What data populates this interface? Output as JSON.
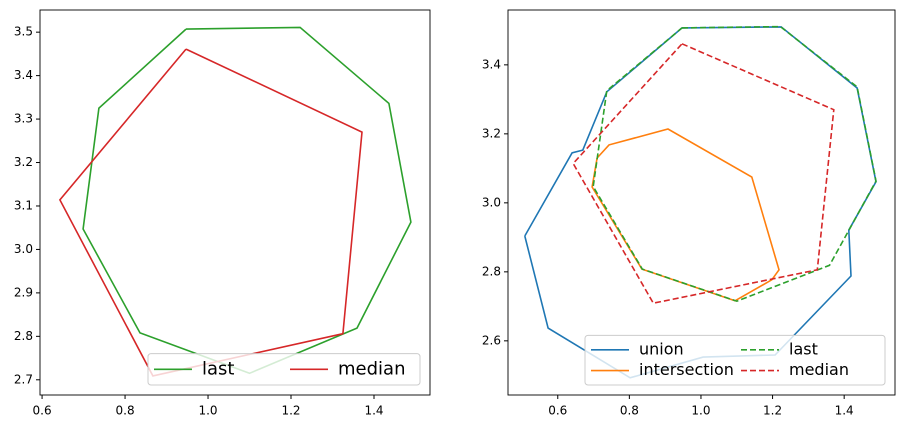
{
  "chart_data": [
    {
      "type": "line",
      "xlim": [
        0.595,
        1.535
      ],
      "ylim": [
        2.665,
        3.551
      ],
      "xticks": [
        0.6,
        0.8,
        {
          "value": 1,
          "label": "1.0"
        },
        1.2,
        1.4
      ],
      "yticks": [
        2.7,
        2.8,
        2.9,
        {
          "value": 3,
          "label": "3.0"
        },
        3.1,
        3.2,
        3.3,
        3.4,
        3.5
      ],
      "legend": "lower right",
      "legend_columns": 2,
      "series": [
        {
          "name": "last",
          "color": "#2ca02c",
          "linestyle": "solid",
          "x": [
            0.947,
            1.222,
            1.436,
            1.489,
            1.359,
            1.1,
            0.836,
            0.699,
            0.737,
            0.947
          ],
          "values": [
            3.507,
            3.511,
            3.336,
            3.063,
            2.819,
            2.715,
            2.808,
            3.047,
            3.325,
            3.507
          ]
        },
        {
          "name": "median",
          "color": "#d62728",
          "linestyle": "solid",
          "x": [
            0.947,
            1.371,
            1.325,
            0.867,
            0.643,
            0.947
          ],
          "values": [
            3.461,
            3.27,
            2.806,
            2.709,
            3.114,
            3.461
          ]
        }
      ]
    },
    {
      "type": "line",
      "xlim": [
        0.461,
        1.542
      ],
      "ylim": [
        2.443,
        3.559
      ],
      "xticks": [
        0.6,
        0.8,
        {
          "value": 1,
          "label": "1.0"
        },
        1.2,
        1.4
      ],
      "yticks": [
        2.6,
        2.8,
        {
          "value": 3,
          "label": "3.0"
        },
        3.2,
        3.4
      ],
      "legend": "lower right",
      "legend_columns": 2,
      "series": [
        {
          "name": "union",
          "color": "#1f77b4",
          "linestyle": "solid",
          "x": [
            0.508,
            0.573,
            0.802,
            1.006,
            1.207,
            1.419,
            1.413,
            1.489,
            1.436,
            1.224,
            0.947,
            0.737,
            0.67,
            0.64,
            0.508
          ],
          "values": [
            2.904,
            2.637,
            2.493,
            2.553,
            2.559,
            2.788,
            2.921,
            3.061,
            3.333,
            3.51,
            3.507,
            3.322,
            3.153,
            3.145,
            2.904
          ]
        },
        {
          "name": "intersection",
          "color": "#ff7f0e",
          "linestyle": "solid",
          "x": [
            0.71,
            0.743,
            0.908,
            1.142,
            1.218,
            1.198,
            1.095,
            0.835,
            0.696,
            0.71
          ],
          "values": [
            3.13,
            3.168,
            3.214,
            3.075,
            2.806,
            2.777,
            2.716,
            2.808,
            3.046,
            3.13
          ]
        },
        {
          "name": "last",
          "color": "#2ca02c",
          "linestyle": "dashed",
          "x": [
            0.947,
            1.222,
            1.436,
            1.489,
            1.359,
            1.1,
            0.836,
            0.699,
            0.737,
            0.947
          ],
          "values": [
            3.507,
            3.511,
            3.336,
            3.063,
            2.819,
            2.715,
            2.808,
            3.047,
            3.325,
            3.507
          ]
        },
        {
          "name": "median",
          "color": "#d62728",
          "linestyle": "dashed",
          "x": [
            0.947,
            1.371,
            1.325,
            0.867,
            0.643,
            0.947
          ],
          "values": [
            3.461,
            3.27,
            2.806,
            2.709,
            3.114,
            3.461
          ]
        }
      ]
    }
  ]
}
